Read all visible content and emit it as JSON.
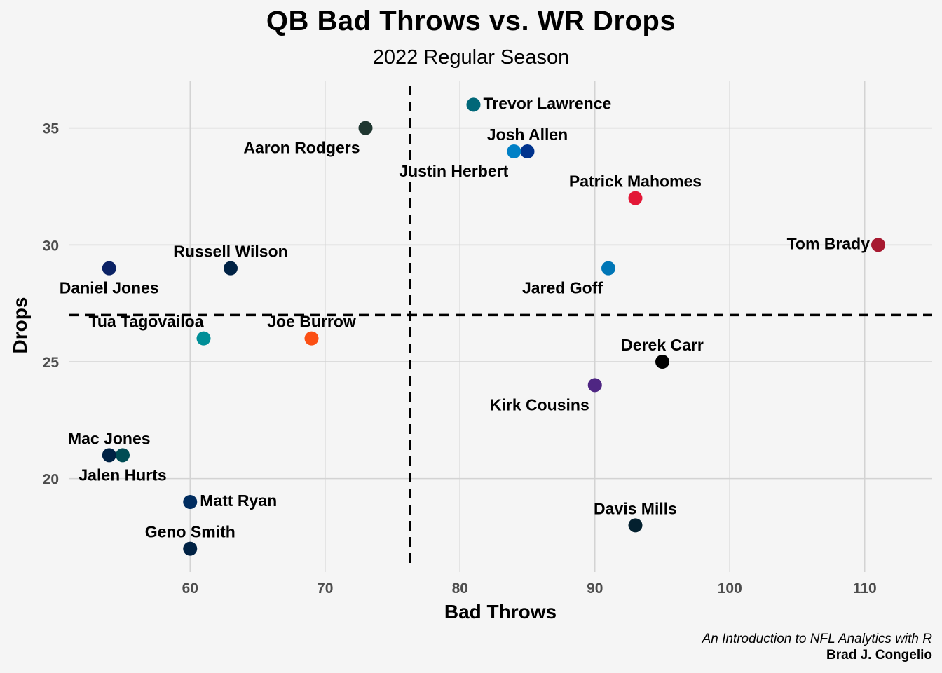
{
  "chart_data": {
    "type": "scatter",
    "title": "QB Bad Throws vs. WR Drops",
    "subtitle": "2022 Regular Season",
    "xlabel": "Bad Throws",
    "ylabel": "Drops",
    "xlim": [
      51,
      115
    ],
    "ylim": [
      16,
      37
    ],
    "xticks": [
      60,
      70,
      80,
      90,
      100,
      110
    ],
    "yticks": [
      20,
      25,
      30,
      35
    ],
    "grid": true,
    "legend": "none",
    "reference_lines": {
      "x": 76.3,
      "y": 27
    },
    "points": [
      {
        "label": "Trevor Lawrence",
        "x": 81,
        "y": 36,
        "color": "#006778",
        "label_pos": "right"
      },
      {
        "label": "Aaron Rodgers",
        "x": 73,
        "y": 35,
        "color": "#203731",
        "label_pos": "below-left"
      },
      {
        "label": "Josh Allen",
        "x": 85,
        "y": 34,
        "color": "#00338D",
        "label_pos": "above"
      },
      {
        "label": "Justin Herbert",
        "x": 84,
        "y": 34,
        "color": "#0080C6",
        "label_pos": "below-left"
      },
      {
        "label": "Patrick Mahomes",
        "x": 93,
        "y": 32,
        "color": "#E31837",
        "label_pos": "above"
      },
      {
        "label": "Tom Brady",
        "x": 111,
        "y": 30,
        "color": "#A71930",
        "label_pos": "left"
      },
      {
        "label": "Russell Wilson",
        "x": 63,
        "y": 29,
        "color": "#002244",
        "label_pos": "above"
      },
      {
        "label": "Daniel Jones",
        "x": 54,
        "y": 29,
        "color": "#0B2265",
        "label_pos": "below"
      },
      {
        "label": "Jared Goff",
        "x": 91,
        "y": 29,
        "color": "#0076B6",
        "label_pos": "below-left"
      },
      {
        "label": "Tua Tagovailoa",
        "x": 61,
        "y": 26,
        "color": "#008E97",
        "label_pos": "above-left"
      },
      {
        "label": "Joe Burrow",
        "x": 69,
        "y": 26,
        "color": "#FB4F14",
        "label_pos": "above"
      },
      {
        "label": "Derek Carr",
        "x": 95,
        "y": 25,
        "color": "#000000",
        "label_pos": "above"
      },
      {
        "label": "Kirk Cousins",
        "x": 90,
        "y": 24,
        "color": "#4F2683",
        "label_pos": "below-left"
      },
      {
        "label": "Mac Jones",
        "x": 54,
        "y": 21,
        "color": "#002244",
        "label_pos": "above"
      },
      {
        "label": "Jalen Hurts",
        "x": 55,
        "y": 21,
        "color": "#004C54",
        "label_pos": "below"
      },
      {
        "label": "Matt Ryan",
        "x": 60,
        "y": 19,
        "color": "#002C5F",
        "label_pos": "right"
      },
      {
        "label": "Davis Mills",
        "x": 93,
        "y": 18,
        "color": "#03202F",
        "label_pos": "above"
      },
      {
        "label": "Geno Smith",
        "x": 60,
        "y": 17,
        "color": "#002244",
        "label_pos": "above"
      }
    ]
  },
  "caption": {
    "line1": "An Introduction to NFL Analytics with R",
    "line2": "Brad J. Congelio"
  }
}
